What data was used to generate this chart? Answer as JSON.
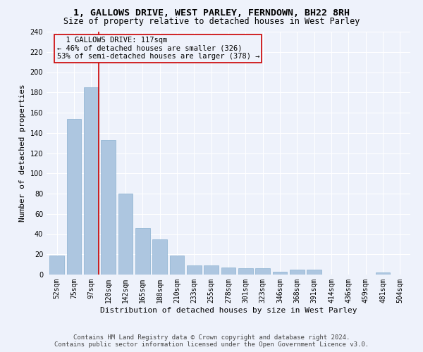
{
  "title": "1, GALLOWS DRIVE, WEST PARLEY, FERNDOWN, BH22 8RH",
  "subtitle": "Size of property relative to detached houses in West Parley",
  "xlabel": "Distribution of detached houses by size in West Parley",
  "ylabel": "Number of detached properties",
  "bar_color": "#adc6e0",
  "bar_edge_color": "#8ab0d0",
  "categories": [
    "52sqm",
    "75sqm",
    "97sqm",
    "120sqm",
    "142sqm",
    "165sqm",
    "188sqm",
    "210sqm",
    "233sqm",
    "255sqm",
    "278sqm",
    "301sqm",
    "323sqm",
    "346sqm",
    "368sqm",
    "391sqm",
    "414sqm",
    "436sqm",
    "459sqm",
    "481sqm",
    "504sqm"
  ],
  "values": [
    19,
    154,
    185,
    133,
    80,
    46,
    35,
    19,
    9,
    9,
    7,
    6,
    6,
    3,
    5,
    5,
    0,
    0,
    0,
    2,
    0
  ],
  "ylim": [
    0,
    240
  ],
  "yticks": [
    0,
    20,
    40,
    60,
    80,
    100,
    120,
    140,
    160,
    180,
    200,
    220,
    240
  ],
  "property_line_x": 2.43,
  "annotation_text": "  1 GALLOWS DRIVE: 117sqm\n← 46% of detached houses are smaller (326)\n53% of semi-detached houses are larger (378) →",
  "annotation_box_color": "#cc0000",
  "footer_line1": "Contains HM Land Registry data © Crown copyright and database right 2024.",
  "footer_line2": "Contains public sector information licensed under the Open Government Licence v3.0.",
  "background_color": "#eef2fb",
  "grid_color": "#ffffff",
  "title_fontsize": 9.5,
  "subtitle_fontsize": 8.5,
  "ylabel_fontsize": 8,
  "xlabel_fontsize": 8,
  "tick_fontsize": 7,
  "annotation_fontsize": 7.5,
  "footer_fontsize": 6.5
}
